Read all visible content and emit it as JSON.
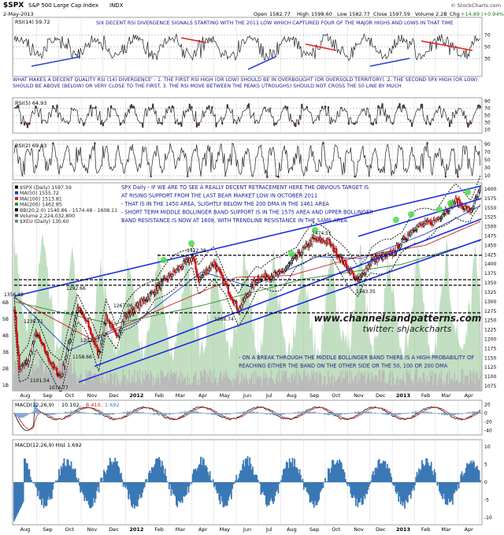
{
  "header": {
    "symbol": "$SPX",
    "name": "S&P 500 Large Cap Index",
    "exchange": "INDX",
    "date": "2-May-2013",
    "open_label": "Open",
    "open": "1582.77",
    "high_label": "High",
    "high": "1598.60",
    "low_label": "Low",
    "low": "1582.77",
    "close_label": "Close",
    "close": "1597.59",
    "volume_label": "Volume",
    "volume": "2.2B",
    "chg_label": "Chg",
    "chg": "+14.89 (+0.94%)",
    "watermark": "© StockCharts.com"
  },
  "x_axis": {
    "labels": [
      "Aug",
      "Sep",
      "Oct",
      "Nov",
      "Dec",
      "2012",
      "Feb",
      "Mar",
      "Apr",
      "May",
      "Jun",
      "Jul",
      "Aug",
      "Sep",
      "Oct",
      "Nov",
      "Dec",
      "2013",
      "Feb",
      "Mar",
      "Apr",
      "May"
    ]
  },
  "rsi14": {
    "legend": "RSI(14) 59.72",
    "ticks": [
      "70",
      "50",
      "30"
    ],
    "annotation": "SIX DECENT RSI DIVERGENCE SIGNALS STARTING WITH THE 2011 LOW WHICH CAPTURED FOUR OF THE MAJOR HIGHS AND LOWS IN THAT TIME"
  },
  "mid_note": "WHAT MAKES A DECENT QUALITY RSI (14) DIVERGENCE' - 1. THE FIRST RSI HIGH (OR LOW) SHOULD BE IN OVERBOUGHT (OR OVERSOLD TERRITORY). 2. THE SECOND SPX HIGH (OR LOW) SHOULD BE ABOVE (BELOW) OR VERY CLOSE TO THE FIRST. 3. THE RSI MOVE BETWEEN THE PEAKS (/TROUGHS) SHOULD NOT CROSS THE 50 LINE BY MUCH",
  "rsi5": {
    "legend": "RSI(5) 64.93",
    "ticks": [
      "90",
      "70",
      "50",
      "30",
      "10"
    ]
  },
  "rsi2": {
    "legend": "RSI(2) 69.83",
    "ticks": [
      "90",
      "70",
      "50",
      "30",
      "10"
    ]
  },
  "price": {
    "legend": [
      {
        "text": "$SPX (Daily) 1597.59",
        "color": "#000000"
      },
      {
        "text": "MA(50) 1555.72",
        "color": "#1f3fbf"
      },
      {
        "text": "MA(100) 1513.81",
        "color": "#cc2222"
      },
      {
        "text": "MA(200) 1462.85",
        "color": "#2e8b2e"
      },
      {
        "text": "BB(20,2.0) 1540.86 - 1574.48 - 1608.11",
        "color": "#000000"
      },
      {
        "text": "Volume 2,224,032,800",
        "color": "#555555"
      },
      {
        "text": "$XEU (Daily) 130.60",
        "color": "#5a9a5a"
      }
    ],
    "ticks": [
      "1600",
      "1575",
      "1550",
      "1525",
      "1500",
      "1475",
      "1450",
      "1425",
      "1400",
      "1375",
      "1350",
      "1325",
      "1300",
      "1275",
      "1250",
      "1225",
      "1200",
      "1175",
      "1150",
      "1125",
      "1100",
      "1075"
    ],
    "left_ticks": [
      "6B",
      "5B",
      "4B",
      "3B",
      "2B",
      "1B"
    ],
    "labels": [
      "1356.48",
      "1292.66",
      "1230.71",
      "1267.06",
      "1202.37",
      "1158.66",
      "1101.54",
      "1074.77",
      "1422.38",
      "1266.74",
      "1474.51",
      "1343.35"
    ],
    "annotation": [
      "SPX Daily - IF WE ARE TO SEE A REALLY DECENT RETRACEMENT HERE THE OBVIOUS TARGET IS",
      "AT RISING SUPPORT FROM THE LAST BEAR MARKET LOW IN OCTOBER 2011",
      "- THAT IS IN THE 1450 AREA, SLIGHTLY BELOW THE 200 DMA IN THE 1461 AREA",
      "- SHORT TERM MIDDLE BOLLINGER BAND SUPPORT IS IN THE 1575 AREA AND UPPER BOLLINGER",
      "BAND RESISTANCE IS NOW AT 1608, WITH TRENDLINE RESISTANCE IN THE SAME AREA"
    ],
    "annotation2": [
      "- ON A BREAK THROUGH THE MIDDLE BOLLINGER BAND THERE IS A HIGH PROBABILITY OF",
      "REACHING EITHER THE BAND ON THE OTHER SIDE OR THE 50, 100 OR 200 DMA"
    ],
    "site": "www.channelsandpatterns.com",
    "twitter": "twitter: shjackcharts"
  },
  "macd": {
    "legend_a": "MACD(12,26,9)",
    "legend_b": "10.102,",
    "legend_c": "8.410,",
    "legend_d": "1.692",
    "ticks": [
      "20",
      "0",
      "-20",
      "-40"
    ]
  },
  "hist": {
    "legend": "MACD(12,26,9) Hist 1.692",
    "ticks": [
      "10",
      "5",
      "0",
      "-5",
      "-10"
    ]
  },
  "colors": {
    "ma50": "#1f3fbf",
    "ma100": "#cc2222",
    "ma200": "#2e8b2e",
    "up": "#000000",
    "down": "#cc1111",
    "volume": "#8fc48f",
    "note": "#1a1a8c",
    "arrow_blue": "#2b45c9",
    "arrow_red": "#e02020",
    "histogram": "#3a78b5",
    "highlight": "#44dd44"
  },
  "chart_data": {
    "type": "line",
    "title": "$SPX S&P 500 Large Cap Index INDX",
    "x_range": [
      "2011-08-01",
      "2013-05-02"
    ],
    "ylim": [
      1050,
      1610
    ],
    "series": [
      {
        "name": "$SPX (Daily)",
        "points": [
          [
            "2011-08-01",
            1286
          ],
          [
            "2011-08-08",
            1120
          ],
          [
            "2011-08-20",
            1140
          ],
          [
            "2011-08-31",
            1218
          ],
          [
            "2011-09-08",
            1185
          ],
          [
            "2011-09-22",
            1130
          ],
          [
            "2011-10-04",
            1099
          ],
          [
            "2011-10-27",
            1284
          ],
          [
            "2011-11-10",
            1240
          ],
          [
            "2011-11-25",
            1158
          ],
          [
            "2011-12-05",
            1262
          ],
          [
            "2011-12-19",
            1205
          ],
          [
            "2011-12-30",
            1257
          ],
          [
            "2012-01-31",
            1312
          ],
          [
            "2012-02-29",
            1366
          ],
          [
            "2012-04-02",
            1419
          ],
          [
            "2012-04-10",
            1358
          ],
          [
            "2012-05-01",
            1405
          ],
          [
            "2012-06-04",
            1278
          ],
          [
            "2012-06-29",
            1362
          ],
          [
            "2012-08-01",
            1375
          ],
          [
            "2012-09-14",
            1465
          ],
          [
            "2012-10-05",
            1460
          ],
          [
            "2012-11-15",
            1353
          ],
          [
            "2012-12-03",
            1410
          ],
          [
            "2012-12-31",
            1426
          ],
          [
            "2013-01-31",
            1498
          ],
          [
            "2013-02-28",
            1514
          ],
          [
            "2013-03-29",
            1569
          ],
          [
            "2013-04-18",
            1541
          ],
          [
            "2013-05-02",
            1597.59
          ]
        ]
      },
      {
        "name": "MA(50)",
        "points": [
          [
            "2011-08-01",
            1315
          ],
          [
            "2011-10-15",
            1170
          ],
          [
            "2012-01-15",
            1245
          ],
          [
            "2012-04-15",
            1380
          ],
          [
            "2012-06-20",
            1340
          ],
          [
            "2012-09-20",
            1420
          ],
          [
            "2012-11-20",
            1415
          ],
          [
            "2013-02-15",
            1480
          ],
          [
            "2013-05-02",
            1555.72
          ]
        ]
      },
      {
        "name": "MA(100)",
        "points": [
          [
            "2011-08-01",
            1310
          ],
          [
            "2011-11-15",
            1200
          ],
          [
            "2012-03-01",
            1290
          ],
          [
            "2012-06-01",
            1365
          ],
          [
            "2012-08-15",
            1370
          ],
          [
            "2012-11-15",
            1420
          ],
          [
            "2013-02-15",
            1450
          ],
          [
            "2013-05-02",
            1513.81
          ]
        ]
      },
      {
        "name": "MA(200)",
        "points": [
          [
            "2011-08-01",
            1300
          ],
          [
            "2011-12-15",
            1240
          ],
          [
            "2012-04-15",
            1290
          ],
          [
            "2012-09-01",
            1360
          ],
          [
            "2013-01-15",
            1400
          ],
          [
            "2013-05-02",
            1462.85
          ]
        ]
      }
    ],
    "annotations": [
      "1356.48",
      "1292.66",
      "1230.71",
      "1267.06",
      "1202.37",
      "1158.66",
      "1101.54",
      "1074.77",
      "1422.38",
      "1266.74",
      "1474.51",
      "1343.35"
    ],
    "legend": "top-left"
  }
}
